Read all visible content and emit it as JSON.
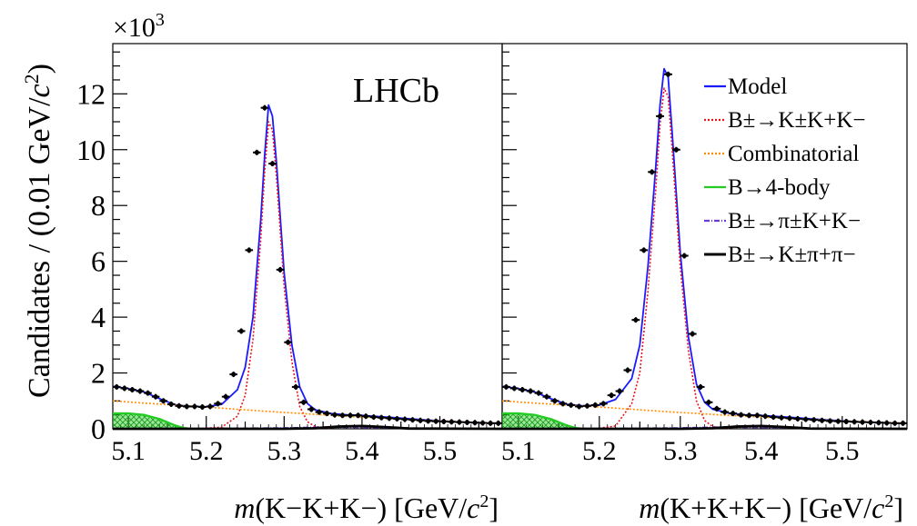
{
  "figure": {
    "ylabel_main": "Candidates / (0.01 GeV/",
    "ylabel_italic": "c",
    "ylabel_sup": "2",
    "ylabel_tail": ")",
    "exponent_base": "×10",
    "exponent_power": "3",
    "experiment_label": "LHCb"
  },
  "colors": {
    "model": "#1a1aff",
    "signal": "#e8141e",
    "combinatorial": "#ff8c00",
    "four_body": "#22cc22",
    "four_body_fill": "#22cc22",
    "pi_kk": "#6a3bd6",
    "k_pipi": "#000000",
    "data": "#000000"
  },
  "legend": [
    {
      "key": "model",
      "label": "Model",
      "style": "solid"
    },
    {
      "key": "signal",
      "label": "B±→K±K+K−",
      "style": "dotted"
    },
    {
      "key": "combinatorial",
      "label": "Combinatorial",
      "style": "dotted"
    },
    {
      "key": "four_body",
      "label": "B→4-body",
      "style": "solid"
    },
    {
      "key": "pi_kk",
      "label": "B±→π±K+K−",
      "style": "dashdot"
    },
    {
      "key": "k_pipi",
      "label": "B±→K±π+π−",
      "style": "solid"
    }
  ],
  "chart_data": [
    {
      "type": "scatter",
      "panel": "left",
      "xlabel_italic": "m",
      "xlabel_rest": "(K−K+K−) [GeV/",
      "xlabel_italic2": "c",
      "xlabel_sup": "2",
      "xlabel_tail": "]",
      "xlim": [
        5.08,
        5.58
      ],
      "ylim": [
        0,
        13.8
      ],
      "y_scale_note": "values in thousands (×10^3)",
      "xticks": [
        "5.1",
        "5.2",
        "5.3",
        "5.4",
        "5.5"
      ],
      "yticks": [
        "0",
        "2",
        "4",
        "6",
        "8",
        "10",
        "12"
      ],
      "series": [
        {
          "name": "Data",
          "x": [
            5.085,
            5.095,
            5.105,
            5.115,
            5.125,
            5.135,
            5.145,
            5.155,
            5.165,
            5.175,
            5.185,
            5.195,
            5.205,
            5.215,
            5.225,
            5.235,
            5.245,
            5.255,
            5.265,
            5.275,
            5.285,
            5.295,
            5.305,
            5.315,
            5.325,
            5.335,
            5.345,
            5.355,
            5.365,
            5.375,
            5.385,
            5.395,
            5.405,
            5.415,
            5.425,
            5.435,
            5.445,
            5.455,
            5.465,
            5.475,
            5.485,
            5.495,
            5.505,
            5.515,
            5.525,
            5.535,
            5.545,
            5.555,
            5.565,
            5.575
          ],
          "y": [
            1.5,
            1.45,
            1.4,
            1.35,
            1.28,
            1.15,
            1.0,
            0.88,
            0.82,
            0.8,
            0.8,
            0.78,
            0.8,
            0.9,
            1.15,
            1.95,
            3.5,
            6.4,
            9.9,
            11.5,
            9.5,
            5.7,
            3.1,
            1.5,
            0.95,
            0.7,
            0.6,
            0.55,
            0.5,
            0.48,
            0.48,
            0.48,
            0.45,
            0.42,
            0.4,
            0.38,
            0.36,
            0.34,
            0.32,
            0.3,
            0.28,
            0.27,
            0.26,
            0.25,
            0.24,
            0.23,
            0.22,
            0.21,
            0.2,
            0.2
          ]
        },
        {
          "name": "Model",
          "x": [
            5.08,
            5.1,
            5.12,
            5.14,
            5.16,
            5.18,
            5.2,
            5.22,
            5.24,
            5.25,
            5.26,
            5.27,
            5.275,
            5.28,
            5.285,
            5.29,
            5.3,
            5.31,
            5.32,
            5.33,
            5.34,
            5.36,
            5.38,
            5.4,
            5.44,
            5.48,
            5.52,
            5.58
          ],
          "y": [
            1.52,
            1.44,
            1.32,
            1.08,
            0.86,
            0.8,
            0.79,
            0.88,
            1.4,
            2.2,
            4.0,
            7.5,
            9.8,
            11.6,
            11.2,
            9.6,
            5.6,
            3.0,
            1.5,
            0.9,
            0.68,
            0.55,
            0.5,
            0.48,
            0.4,
            0.32,
            0.25,
            0.19
          ]
        },
        {
          "name": "B±→K±K+K−",
          "x": [
            5.2,
            5.22,
            5.24,
            5.25,
            5.26,
            5.27,
            5.275,
            5.28,
            5.285,
            5.29,
            5.3,
            5.31,
            5.32,
            5.33,
            5.34,
            5.36
          ],
          "y": [
            0.02,
            0.06,
            0.45,
            1.2,
            3.2,
            6.8,
            9.2,
            11.0,
            10.7,
            9.1,
            5.1,
            2.4,
            0.8,
            0.25,
            0.08,
            0.01
          ]
        },
        {
          "name": "Combinatorial",
          "x": [
            5.08,
            5.12,
            5.16,
            5.2,
            5.24,
            5.28,
            5.32,
            5.36,
            5.4,
            5.44,
            5.48,
            5.52,
            5.58
          ],
          "y": [
            1.0,
            0.92,
            0.85,
            0.78,
            0.7,
            0.62,
            0.55,
            0.48,
            0.42,
            0.36,
            0.31,
            0.26,
            0.2
          ]
        },
        {
          "name": "B→4-body",
          "x": [
            5.08,
            5.1,
            5.12,
            5.14,
            5.16,
            5.17,
            5.18
          ],
          "y": [
            0.55,
            0.55,
            0.5,
            0.35,
            0.12,
            0.03,
            0.0
          ]
        },
        {
          "name": "B±→π±K+K−",
          "x": [
            5.08,
            5.2,
            5.3,
            5.35,
            5.4,
            5.45,
            5.5,
            5.58
          ],
          "y": [
            0.0,
            0.01,
            0.03,
            0.06,
            0.05,
            0.03,
            0.01,
            0.0
          ]
        },
        {
          "name": "B±→K±π+π−",
          "x": [
            5.08,
            5.3,
            5.34,
            5.37,
            5.4,
            5.43,
            5.46,
            5.58
          ],
          "y": [
            0.0,
            0.0,
            0.02,
            0.08,
            0.1,
            0.06,
            0.01,
            0.0
          ]
        }
      ]
    },
    {
      "type": "scatter",
      "panel": "right",
      "xlabel_italic": "m",
      "xlabel_rest": "(K+K+K−) [GeV/",
      "xlabel_italic2": "c",
      "xlabel_sup": "2",
      "xlabel_tail": "]",
      "xlim": [
        5.08,
        5.58
      ],
      "ylim": [
        0,
        13.8
      ],
      "y_scale_note": "values in thousands (×10^3)",
      "xticks": [
        "5.1",
        "5.2",
        "5.3",
        "5.4",
        "5.5"
      ],
      "yticks": [
        "0",
        "2",
        "4",
        "6",
        "8",
        "10",
        "12"
      ],
      "series": [
        {
          "name": "Data",
          "x": [
            5.085,
            5.095,
            5.105,
            5.115,
            5.125,
            5.135,
            5.145,
            5.155,
            5.165,
            5.175,
            5.185,
            5.195,
            5.205,
            5.215,
            5.225,
            5.235,
            5.245,
            5.255,
            5.265,
            5.275,
            5.285,
            5.295,
            5.305,
            5.315,
            5.325,
            5.335,
            5.345,
            5.355,
            5.365,
            5.375,
            5.385,
            5.395,
            5.405,
            5.415,
            5.425,
            5.435,
            5.445,
            5.455,
            5.465,
            5.475,
            5.485,
            5.495,
            5.505,
            5.515,
            5.525,
            5.535,
            5.545,
            5.555,
            5.565,
            5.575
          ],
          "y": [
            1.5,
            1.45,
            1.4,
            1.35,
            1.28,
            1.15,
            1.0,
            0.9,
            0.85,
            0.8,
            0.82,
            0.85,
            0.9,
            1.2,
            1.35,
            2.1,
            3.9,
            6.4,
            9.2,
            11.2,
            12.7,
            10.0,
            6.2,
            3.4,
            1.5,
            0.95,
            0.72,
            0.6,
            0.55,
            0.5,
            0.48,
            0.48,
            0.45,
            0.42,
            0.4,
            0.38,
            0.36,
            0.34,
            0.32,
            0.3,
            0.28,
            0.27,
            0.26,
            0.25,
            0.24,
            0.23,
            0.22,
            0.21,
            0.2,
            0.2
          ]
        },
        {
          "name": "Model",
          "x": [
            5.08,
            5.1,
            5.12,
            5.14,
            5.16,
            5.18,
            5.2,
            5.22,
            5.24,
            5.25,
            5.26,
            5.27,
            5.275,
            5.28,
            5.285,
            5.29,
            5.3,
            5.31,
            5.32,
            5.33,
            5.34,
            5.36,
            5.38,
            5.4,
            5.44,
            5.48,
            5.52,
            5.58
          ],
          "y": [
            1.52,
            1.44,
            1.32,
            1.08,
            0.88,
            0.82,
            0.85,
            1.05,
            1.8,
            3.0,
            5.8,
            9.5,
            11.6,
            12.9,
            12.6,
            10.6,
            6.3,
            3.3,
            1.6,
            0.95,
            0.7,
            0.56,
            0.5,
            0.48,
            0.4,
            0.32,
            0.25,
            0.19
          ]
        },
        {
          "name": "B±→K±K+K−",
          "x": [
            5.2,
            5.22,
            5.24,
            5.25,
            5.26,
            5.27,
            5.275,
            5.28,
            5.285,
            5.29,
            5.3,
            5.31,
            5.32,
            5.33,
            5.34,
            5.36
          ],
          "y": [
            0.02,
            0.1,
            0.9,
            2.0,
            4.9,
            8.7,
            10.9,
            12.2,
            11.9,
            10.0,
            5.8,
            2.8,
            1.0,
            0.3,
            0.08,
            0.01
          ]
        },
        {
          "name": "Combinatorial",
          "x": [
            5.08,
            5.12,
            5.16,
            5.2,
            5.24,
            5.28,
            5.32,
            5.36,
            5.4,
            5.44,
            5.48,
            5.52,
            5.58
          ],
          "y": [
            1.0,
            0.92,
            0.85,
            0.78,
            0.7,
            0.62,
            0.55,
            0.48,
            0.42,
            0.36,
            0.31,
            0.26,
            0.2
          ]
        },
        {
          "name": "B→4-body",
          "x": [
            5.08,
            5.1,
            5.12,
            5.14,
            5.16,
            5.17,
            5.18
          ],
          "y": [
            0.55,
            0.55,
            0.5,
            0.35,
            0.12,
            0.03,
            0.0
          ]
        },
        {
          "name": "B±→π±K+K−",
          "x": [
            5.08,
            5.2,
            5.3,
            5.35,
            5.4,
            5.45,
            5.5,
            5.58
          ],
          "y": [
            0.0,
            0.01,
            0.03,
            0.06,
            0.05,
            0.03,
            0.01,
            0.0
          ]
        },
        {
          "name": "B±→K±π+π−",
          "x": [
            5.08,
            5.3,
            5.34,
            5.37,
            5.4,
            5.43,
            5.46,
            5.58
          ],
          "y": [
            0.0,
            0.0,
            0.02,
            0.08,
            0.1,
            0.06,
            0.01,
            0.0
          ]
        }
      ]
    }
  ]
}
